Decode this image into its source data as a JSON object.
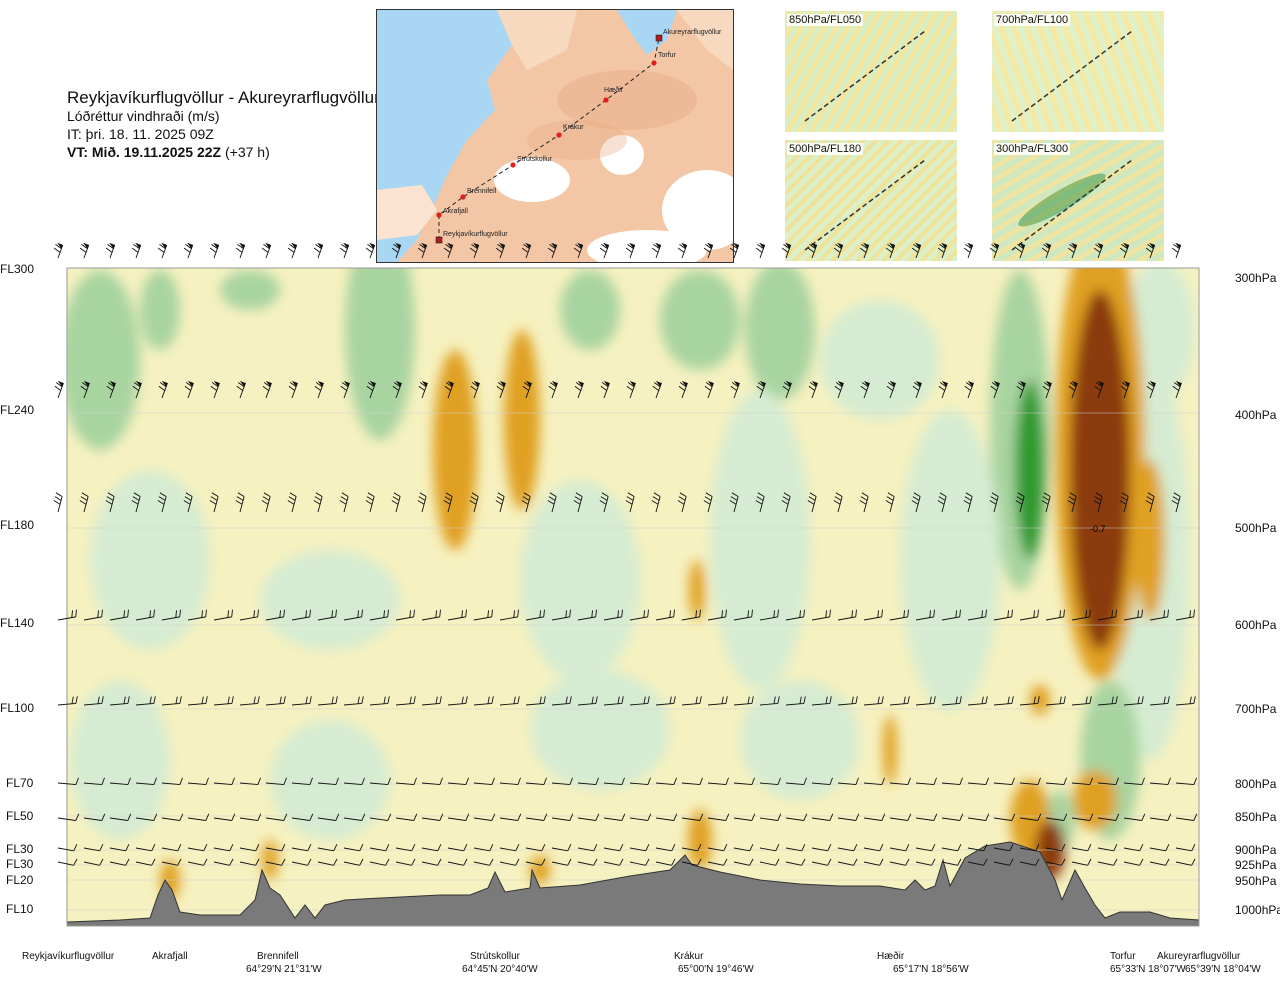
{
  "header": {
    "route_title": "Reykjavíkurflugvöllur - Akureyrarflugvöllur",
    "variable": "Lóðréttur vindhraði (m/s)",
    "issue_time": "IT: þri. 18. 11. 2025 09Z",
    "valid_time_bold": "VT: Mið. 19.11.2025 22Z",
    "valid_time_offset": "(+37 h)"
  },
  "route_map": {
    "waypoints": [
      "Akureyrarflugvöllur",
      "Torfur",
      "Hæðir",
      "Krákur",
      "Strútskollur",
      "Brennifell",
      "Akrafjall",
      "Reykjavíkurflugvöllur"
    ]
  },
  "thumbnails": [
    {
      "label": "850hPa/FL050"
    },
    {
      "label": "700hPa/FL100"
    },
    {
      "label": "500hPa/FL180"
    },
    {
      "label": "300hPa/FL300"
    }
  ],
  "left_axis": [
    "FL300",
    "FL240",
    "FL180",
    "FL140",
    "FL100",
    "FL70",
    "FL50",
    "FL30",
    "FL30",
    "FL20",
    "FL10"
  ],
  "right_axis": [
    "300hPa",
    "400hPa",
    "500hPa",
    "600hPa",
    "700hPa",
    "800hPa",
    "850hPa",
    "900hPa",
    "925hPa",
    "950hPa",
    "1000hPa"
  ],
  "bottom_axis": [
    {
      "name": "Reykjavíkurflugvöllur",
      "coord": ""
    },
    {
      "name": "Akrafjall",
      "coord": ""
    },
    {
      "name": "Brennifell",
      "coord": "64°29'N 21°31'W"
    },
    {
      "name": "Strútskollur",
      "coord": "64°45'N 20°40'W"
    },
    {
      "name": "Krákur",
      "coord": "65°00'N 19°46'W"
    },
    {
      "name": "Hæðir",
      "coord": "65°17'N 18°56'W"
    },
    {
      "name": "Torfur",
      "coord": "65°33'N 18°07'W"
    },
    {
      "name": "Akureyrarflugvöllur",
      "coord": "65°39'N 18°04'W"
    }
  ],
  "annotation": "-0.7",
  "colors": {
    "sink_strong": "#8b3a0f",
    "sink_mid": "#e0a020",
    "sink_weak": "#f5eeaa",
    "neutral": "#ffffe6",
    "rise_weak": "#d6ecd2",
    "rise_mid": "#a8d4a0",
    "rise_strong": "#2f9a2f",
    "terrain": "#7a7a7a"
  },
  "chart_data": {
    "type": "heatmap",
    "title": "Lóðréttur vindhraði (m/s)",
    "xlabel": "",
    "ylabel": "",
    "pressure_levels_hPa": [
      300,
      400,
      500,
      600,
      700,
      800,
      850,
      900,
      925,
      950,
      1000
    ],
    "locations": [
      "Reykjavíkurflugvöllur",
      "Akrafjall",
      "Brennifell",
      "Strútskollur",
      "Krákur",
      "Hæðir",
      "Torfur",
      "Akureyrarflugvöllur"
    ],
    "labelled_value": -0.7
  }
}
